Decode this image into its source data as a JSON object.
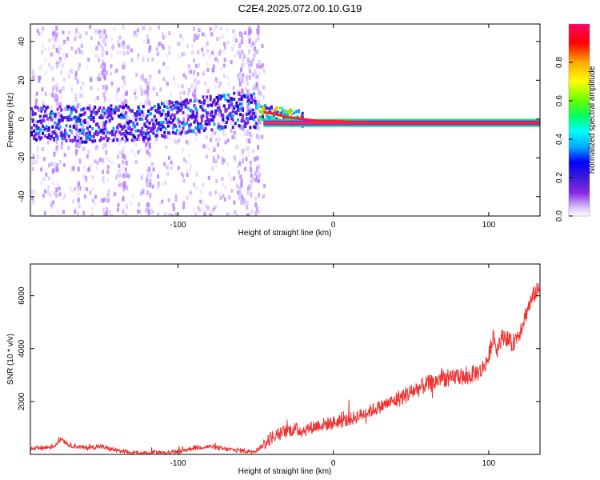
{
  "figure": {
    "title": "C2E4.2025.072.00.10.G19"
  },
  "chart_data": [
    {
      "type": "heatmap",
      "xlabel": "Height of straight line (km)",
      "ylabel": "Frequency (Hz)",
      "xlim": [
        -195,
        133
      ],
      "ylim": [
        -50,
        49
      ],
      "xticks": [
        -100,
        0,
        100
      ],
      "yticks": [
        -40,
        -20,
        0,
        20,
        40
      ],
      "colorbar": {
        "label": "Normalized spectral amplitude",
        "ticks": [
          0.0,
          0.2,
          0.4,
          0.6,
          0.8
        ],
        "range": [
          0,
          1
        ],
        "colormap": [
          "#ffffff",
          "#dcc9ff",
          "#8a2be2",
          "#3a1bd6",
          "#0000ff",
          "#00aaff",
          "#00ffff",
          "#00ff66",
          "#66ff00",
          "#ffff00",
          "#ffaa00",
          "#ff0000",
          "#ff0066"
        ]
      },
      "ridge": {
        "x": [
          -195,
          -180,
          -160,
          -140,
          -120,
          -100,
          -80,
          -60,
          -50,
          -40,
          -30,
          -20,
          -10,
          0,
          20,
          50,
          100,
          133
        ],
        "frequency": [
          -2,
          -2,
          -3,
          -2,
          -2,
          1,
          3,
          5,
          4,
          3,
          1,
          0,
          -1,
          -1,
          -2,
          -2,
          -2,
          -2
        ]
      },
      "grid": false
    },
    {
      "type": "line",
      "xlabel": "Height of straight line (km)",
      "ylabel": "SNR (10 * v/v)",
      "xlim": [
        -195,
        133
      ],
      "ylim": [
        0,
        7200
      ],
      "xticks": [
        -100,
        0,
        100
      ],
      "yticks": [
        2000,
        4000,
        6000
      ],
      "series": [
        {
          "color": "#ee3333",
          "x": [
            -195,
            -190,
            -180,
            -175,
            -170,
            -160,
            -150,
            -140,
            -130,
            -120,
            -110,
            -100,
            -90,
            -80,
            -70,
            -60,
            -55,
            -50,
            -45,
            -40,
            -35,
            -30,
            -25,
            -20,
            -10,
            0,
            10,
            20,
            30,
            40,
            50,
            60,
            65,
            70,
            75,
            80,
            85,
            90,
            95,
            100,
            103,
            105,
            107,
            110,
            115,
            120,
            125,
            130,
            133
          ],
          "values": [
            200,
            220,
            300,
            600,
            350,
            250,
            300,
            150,
            60,
            40,
            60,
            90,
            250,
            300,
            200,
            150,
            120,
            150,
            350,
            650,
            750,
            900,
            950,
            900,
            1100,
            1200,
            1300,
            1550,
            1800,
            2050,
            2350,
            2650,
            2700,
            2950,
            2800,
            3000,
            2850,
            3050,
            3150,
            3650,
            4600,
            3900,
            4300,
            4500,
            4150,
            4650,
            5500,
            6150,
            6200
          ]
        }
      ],
      "grid": false
    }
  ]
}
